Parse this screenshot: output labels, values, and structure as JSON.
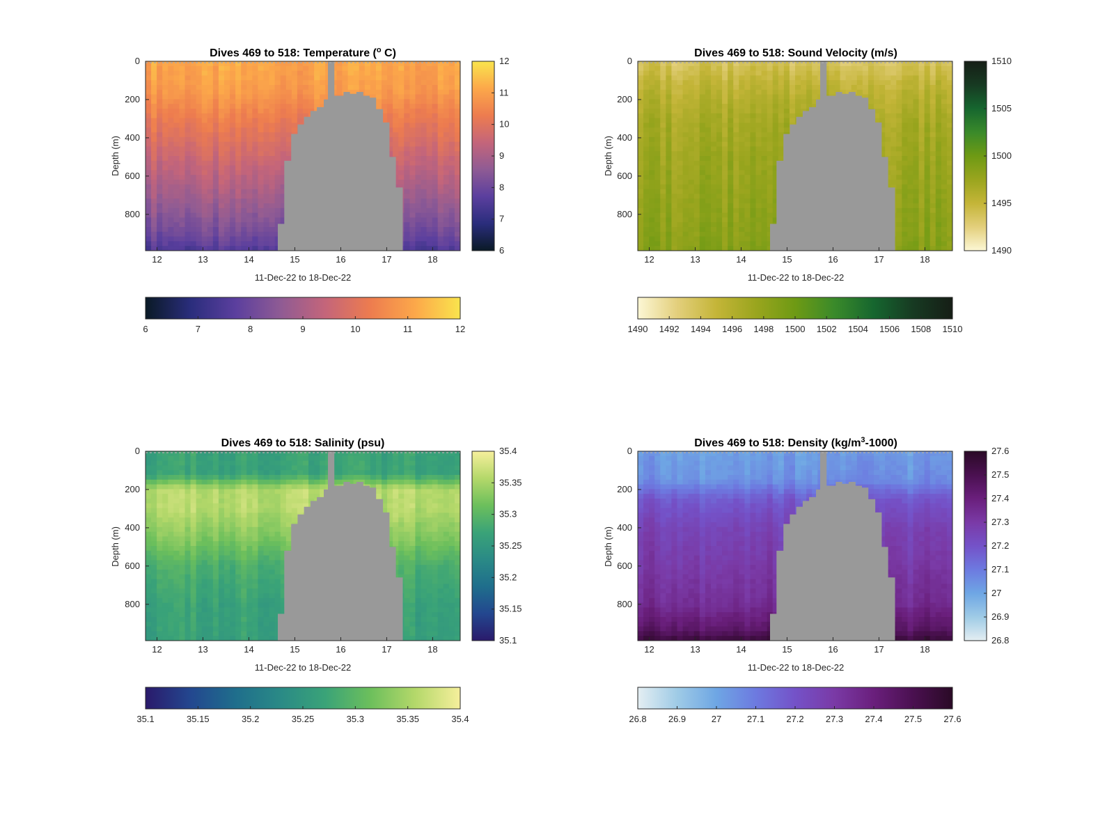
{
  "chart_data": [
    {
      "type": "heatmap",
      "variable": "temperature",
      "title": "Dives 469 to 518: Temperature (",
      "title_unit": "o",
      "title_end": " C)",
      "xlabel": "11-Dec-22 to 18-Dec-22",
      "ylabel": "Depth (m)",
      "xlim": [
        11.75,
        18.6
      ],
      "ylim": [
        0,
        990
      ],
      "y_reversed": true,
      "x_ticks": [
        "12",
        "13",
        "14",
        "15",
        "16",
        "17",
        "18"
      ],
      "y_ticks": [
        "0",
        "200",
        "400",
        "600",
        "800"
      ],
      "clim": [
        6,
        12
      ],
      "side_colorbar_ticks": [
        "6",
        "7",
        "8",
        "9",
        "10",
        "11",
        "12"
      ],
      "bottom_colorbar_ticks": [
        "6",
        "7",
        "8",
        "9",
        "10",
        "11",
        "12"
      ],
      "colormap": [
        "#0a1a26",
        "#2a2d7c",
        "#5b3f9e",
        "#8f5b94",
        "#c4657a",
        "#ed7c4f",
        "#fca84a",
        "#f9e44d"
      ],
      "profile": [
        [
          0,
          11.1
        ],
        [
          150,
          10.9
        ],
        [
          300,
          10.3
        ],
        [
          500,
          9.6
        ],
        [
          700,
          8.9
        ],
        [
          900,
          8.1
        ],
        [
          990,
          7.5
        ]
      ]
    },
    {
      "type": "heatmap",
      "variable": "sound_velocity",
      "title": "Dives 469 to 518: Sound Velocity (m/s)",
      "xlabel": "11-Dec-22 to 18-Dec-22",
      "ylabel": "Depth (m)",
      "xlim": [
        11.75,
        18.6
      ],
      "ylim": [
        0,
        990
      ],
      "y_reversed": true,
      "x_ticks": [
        "12",
        "13",
        "14",
        "15",
        "16",
        "17",
        "18"
      ],
      "y_ticks": [
        "0",
        "200",
        "400",
        "600",
        "800"
      ],
      "clim": [
        1490,
        1510
      ],
      "side_colorbar_ticks": [
        "1490",
        "1495",
        "1500",
        "1505",
        "1510"
      ],
      "bottom_colorbar_ticks": [
        "1490",
        "1492",
        "1494",
        "1496",
        "1498",
        "1500",
        "1502",
        "1504",
        "1506",
        "1508",
        "1510"
      ],
      "colormap": [
        "#fcf7d5",
        "#e3cf7c",
        "#c4b538",
        "#9aa51e",
        "#6e9a14",
        "#3a8a2a",
        "#16662f",
        "#173a22",
        "#161e16"
      ],
      "profile": [
        [
          0,
          1493.5
        ],
        [
          120,
          1495.2
        ],
        [
          300,
          1496.6
        ],
        [
          500,
          1497.3
        ],
        [
          700,
          1497.8
        ],
        [
          900,
          1498.3
        ],
        [
          990,
          1498.6
        ]
      ]
    },
    {
      "type": "heatmap",
      "variable": "salinity",
      "title": "Dives 469 to 518: Salinity (psu)",
      "xlabel": "11-Dec-22 to 18-Dec-22",
      "ylabel": "Depth (m)",
      "xlim": [
        11.75,
        18.6
      ],
      "ylim": [
        0,
        990
      ],
      "y_reversed": true,
      "x_ticks": [
        "12",
        "13",
        "14",
        "15",
        "16",
        "17",
        "18"
      ],
      "y_ticks": [
        "0",
        "200",
        "400",
        "600",
        "800"
      ],
      "clim": [
        35.1,
        35.4
      ],
      "side_colorbar_ticks": [
        "35.1",
        "35.15",
        "35.2",
        "35.25",
        "35.3",
        "35.35",
        "35.4"
      ],
      "bottom_colorbar_ticks": [
        "35.1",
        "35.15",
        "35.2",
        "35.25",
        "35.3",
        "35.35",
        "35.4"
      ],
      "colormap": [
        "#2a1a6b",
        "#23478f",
        "#1f6e8c",
        "#2a8a86",
        "#3aa378",
        "#6cbf5c",
        "#b4d86a",
        "#f6ef9c"
      ],
      "profile": [
        [
          0,
          35.27
        ],
        [
          120,
          35.27
        ],
        [
          200,
          35.36
        ],
        [
          300,
          35.36
        ],
        [
          450,
          35.33
        ],
        [
          600,
          35.29
        ],
        [
          800,
          35.27
        ],
        [
          990,
          35.265
        ]
      ]
    },
    {
      "type": "heatmap",
      "variable": "density",
      "title": "Dives 469 to 518: Density (kg/m",
      "title_unit": "3",
      "title_end": "-1000)",
      "xlabel": "11-Dec-22 to 18-Dec-22",
      "ylabel": "Depth (m)",
      "xlim": [
        11.75,
        18.6
      ],
      "ylim": [
        0,
        990
      ],
      "y_reversed": true,
      "x_ticks": [
        "12",
        "13",
        "14",
        "15",
        "16",
        "17",
        "18"
      ],
      "y_ticks": [
        "0",
        "200",
        "400",
        "600",
        "800"
      ],
      "clim": [
        26.8,
        27.6
      ],
      "side_colorbar_ticks": [
        "26.8",
        "26.9",
        "27",
        "27.1",
        "27.2",
        "27.3",
        "27.4",
        "27.5",
        "27.6"
      ],
      "bottom_colorbar_ticks": [
        "26.8",
        "26.9",
        "27",
        "27.1",
        "27.2",
        "27.3",
        "27.4",
        "27.5",
        "27.6"
      ],
      "colormap": [
        "#e4eef2",
        "#9fcbe6",
        "#6ea6e4",
        "#6d7ae0",
        "#7452c8",
        "#7a3aa6",
        "#6a1f7c",
        "#4a1050",
        "#2a0a26"
      ],
      "profile": [
        [
          0,
          27.02
        ],
        [
          150,
          27.05
        ],
        [
          250,
          27.18
        ],
        [
          400,
          27.26
        ],
        [
          600,
          27.3
        ],
        [
          800,
          27.35
        ],
        [
          930,
          27.45
        ],
        [
          990,
          27.55
        ]
      ]
    }
  ],
  "seamount": {
    "color": "#999999",
    "mast": {
      "x": [
        15.72,
        15.86
      ],
      "top_depth": 0
    },
    "outline": [
      [
        14.63,
        990
      ],
      [
        14.63,
        850
      ],
      [
        14.77,
        850
      ],
      [
        14.77,
        520
      ],
      [
        14.92,
        520
      ],
      [
        14.92,
        380
      ],
      [
        15.06,
        380
      ],
      [
        15.06,
        330
      ],
      [
        15.2,
        330
      ],
      [
        15.2,
        290
      ],
      [
        15.34,
        290
      ],
      [
        15.34,
        260
      ],
      [
        15.48,
        260
      ],
      [
        15.48,
        240
      ],
      [
        15.63,
        240
      ],
      [
        15.63,
        200
      ],
      [
        15.77,
        200
      ],
      [
        15.77,
        180
      ],
      [
        16.06,
        180
      ],
      [
        16.06,
        160
      ],
      [
        16.2,
        160
      ],
      [
        16.2,
        170
      ],
      [
        16.34,
        170
      ],
      [
        16.34,
        160
      ],
      [
        16.49,
        160
      ],
      [
        16.49,
        180
      ],
      [
        16.63,
        180
      ],
      [
        16.63,
        190
      ],
      [
        16.77,
        190
      ],
      [
        16.77,
        250
      ],
      [
        16.92,
        250
      ],
      [
        16.92,
        320
      ],
      [
        17.06,
        320
      ],
      [
        17.06,
        500
      ],
      [
        17.2,
        500
      ],
      [
        17.2,
        660
      ],
      [
        17.35,
        660
      ],
      [
        17.35,
        990
      ]
    ]
  }
}
